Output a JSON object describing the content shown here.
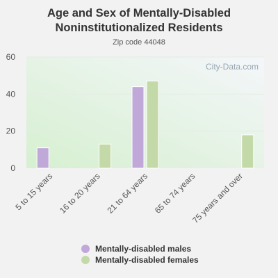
{
  "colors": {
    "background": "#f2f2f2",
    "males": "#c0a8d8",
    "females": "#c4d9a8",
    "text": "#333333"
  },
  "watermark": "City-Data.com",
  "chart_data": {
    "type": "bar",
    "title": "Age and Sex of Mentally-Disabled Noninstitutionalized Residents",
    "subtitle": "Zip code 44048",
    "categories": [
      "5 to 15 years",
      "16 to 20 years",
      "21 to 64 years",
      "65 to 74 years",
      "75 years and over"
    ],
    "series": [
      {
        "name": "Mentally-disabled males",
        "values": [
          11,
          0,
          44,
          0,
          0
        ]
      },
      {
        "name": "Mentally-disabled females",
        "values": [
          0,
          13,
          47,
          0,
          18
        ]
      }
    ],
    "ylim": [
      0,
      60
    ],
    "yticks": [
      0,
      20,
      40,
      60
    ],
    "grid": true,
    "legend_position": "bottom"
  }
}
